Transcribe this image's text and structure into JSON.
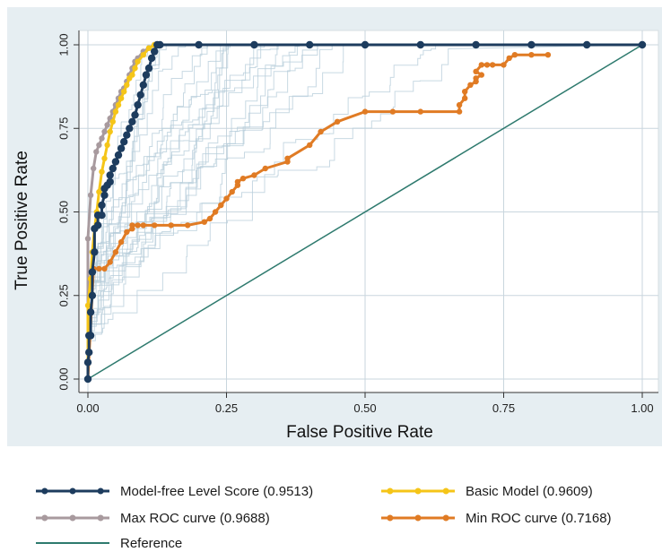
{
  "chart_data": {
    "type": "line",
    "xlabel": "False Positive Rate",
    "ylabel": "True Positive Rate",
    "xlim": [
      0,
      1
    ],
    "ylim": [
      0,
      1
    ],
    "x_ticks": [
      "0.00",
      "0.25",
      "0.50",
      "0.75",
      "1.00"
    ],
    "y_ticks": [
      "0.00",
      "0.25",
      "0.50",
      "0.75",
      "1.00"
    ],
    "grid": true,
    "legend_position": "bottom",
    "series": [
      {
        "name": "Model-free Level Score (0.9513)",
        "color": "#1d3c5e",
        "x": [
          0,
          0,
          0.002,
          0.002,
          0.005,
          0.005,
          0.008,
          0.008,
          0.012,
          0.012,
          0.018,
          0.018,
          0.025,
          0.025,
          0.03,
          0.03,
          0.035,
          0.04,
          0.04,
          0.045,
          0.05,
          0.055,
          0.06,
          0.065,
          0.07,
          0.075,
          0.08,
          0.085,
          0.09,
          0.095,
          0.1,
          0.105,
          0.11,
          0.115,
          0.12,
          0.125,
          0.13,
          0.2,
          0.3,
          0.4,
          0.5,
          0.6,
          0.7,
          0.8,
          0.9,
          1.0
        ],
        "y": [
          0,
          0.05,
          0.08,
          0.13,
          0.13,
          0.2,
          0.25,
          0.32,
          0.38,
          0.45,
          0.46,
          0.49,
          0.49,
          0.52,
          0.55,
          0.57,
          0.58,
          0.59,
          0.61,
          0.63,
          0.65,
          0.67,
          0.69,
          0.71,
          0.73,
          0.75,
          0.77,
          0.79,
          0.82,
          0.85,
          0.88,
          0.91,
          0.93,
          0.96,
          0.98,
          1.0,
          1.0,
          1.0,
          1.0,
          1.0,
          1.0,
          1.0,
          1.0,
          1.0,
          1.0,
          1.0
        ]
      },
      {
        "name": "Basic Model (0.9609)",
        "color": "#f5c518",
        "x": [
          0,
          0,
          0.005,
          0.008,
          0.012,
          0.016,
          0.02,
          0.025,
          0.03,
          0.035,
          0.04,
          0.045,
          0.05,
          0.055,
          0.06,
          0.065,
          0.07,
          0.075,
          0.08,
          0.085,
          0.09,
          0.1,
          0.11,
          0.12,
          1.0
        ],
        "y": [
          0,
          0.22,
          0.3,
          0.38,
          0.45,
          0.5,
          0.56,
          0.62,
          0.66,
          0.7,
          0.74,
          0.77,
          0.8,
          0.82,
          0.84,
          0.86,
          0.88,
          0.9,
          0.91,
          0.93,
          0.95,
          0.97,
          0.99,
          1.0,
          1.0
        ]
      },
      {
        "name": "Max ROC curve (0.9688)",
        "color": "#a89a9e",
        "x": [
          0,
          0,
          0.005,
          0.01,
          0.015,
          0.02,
          0.025,
          0.03,
          0.035,
          0.04,
          0.045,
          0.05,
          0.055,
          0.06,
          0.065,
          0.07,
          0.075,
          0.08,
          0.085,
          0.09,
          0.1,
          0.11,
          0.12,
          1.0
        ],
        "y": [
          0,
          0.42,
          0.55,
          0.63,
          0.68,
          0.7,
          0.72,
          0.74,
          0.76,
          0.78,
          0.8,
          0.82,
          0.84,
          0.86,
          0.87,
          0.89,
          0.91,
          0.93,
          0.95,
          0.96,
          0.98,
          0.99,
          1.0,
          1.0
        ]
      },
      {
        "name": "Min ROC curve (0.7168)",
        "color": "#e07b24",
        "x": [
          0,
          0.01,
          0.01,
          0.02,
          0.03,
          0.04,
          0.05,
          0.06,
          0.07,
          0.08,
          0.08,
          0.09,
          0.1,
          0.12,
          0.15,
          0.18,
          0.21,
          0.22,
          0.23,
          0.24,
          0.25,
          0.26,
          0.27,
          0.27,
          0.28,
          0.3,
          0.32,
          0.36,
          0.36,
          0.4,
          0.42,
          0.45,
          0.5,
          0.55,
          0.6,
          0.67,
          0.67,
          0.68,
          0.68,
          0.69,
          0.7,
          0.7,
          0.71,
          0.7,
          0.71,
          0.72,
          0.73,
          0.75,
          0.76,
          0.77,
          0.8,
          0.83
        ],
        "y": [
          0,
          0.33,
          0.33,
          0.33,
          0.33,
          0.35,
          0.38,
          0.41,
          0.44,
          0.45,
          0.46,
          0.46,
          0.46,
          0.46,
          0.46,
          0.46,
          0.47,
          0.48,
          0.5,
          0.52,
          0.54,
          0.56,
          0.58,
          0.59,
          0.6,
          0.61,
          0.63,
          0.65,
          0.66,
          0.7,
          0.74,
          0.77,
          0.8,
          0.8,
          0.8,
          0.8,
          0.82,
          0.84,
          0.86,
          0.88,
          0.89,
          0.9,
          0.91,
          0.92,
          0.94,
          0.94,
          0.94,
          0.94,
          0.96,
          0.97,
          0.97,
          0.97
        ]
      },
      {
        "name": "Reference",
        "color": "#2e7a6e",
        "x": [
          0,
          1
        ],
        "y": [
          0,
          1
        ]
      }
    ]
  },
  "colors": {
    "plot_background": "#e6eef2",
    "panel_background": "#ffffff",
    "grid": "#c9d6de",
    "bootstrap_curves": "#b5ccd9"
  }
}
